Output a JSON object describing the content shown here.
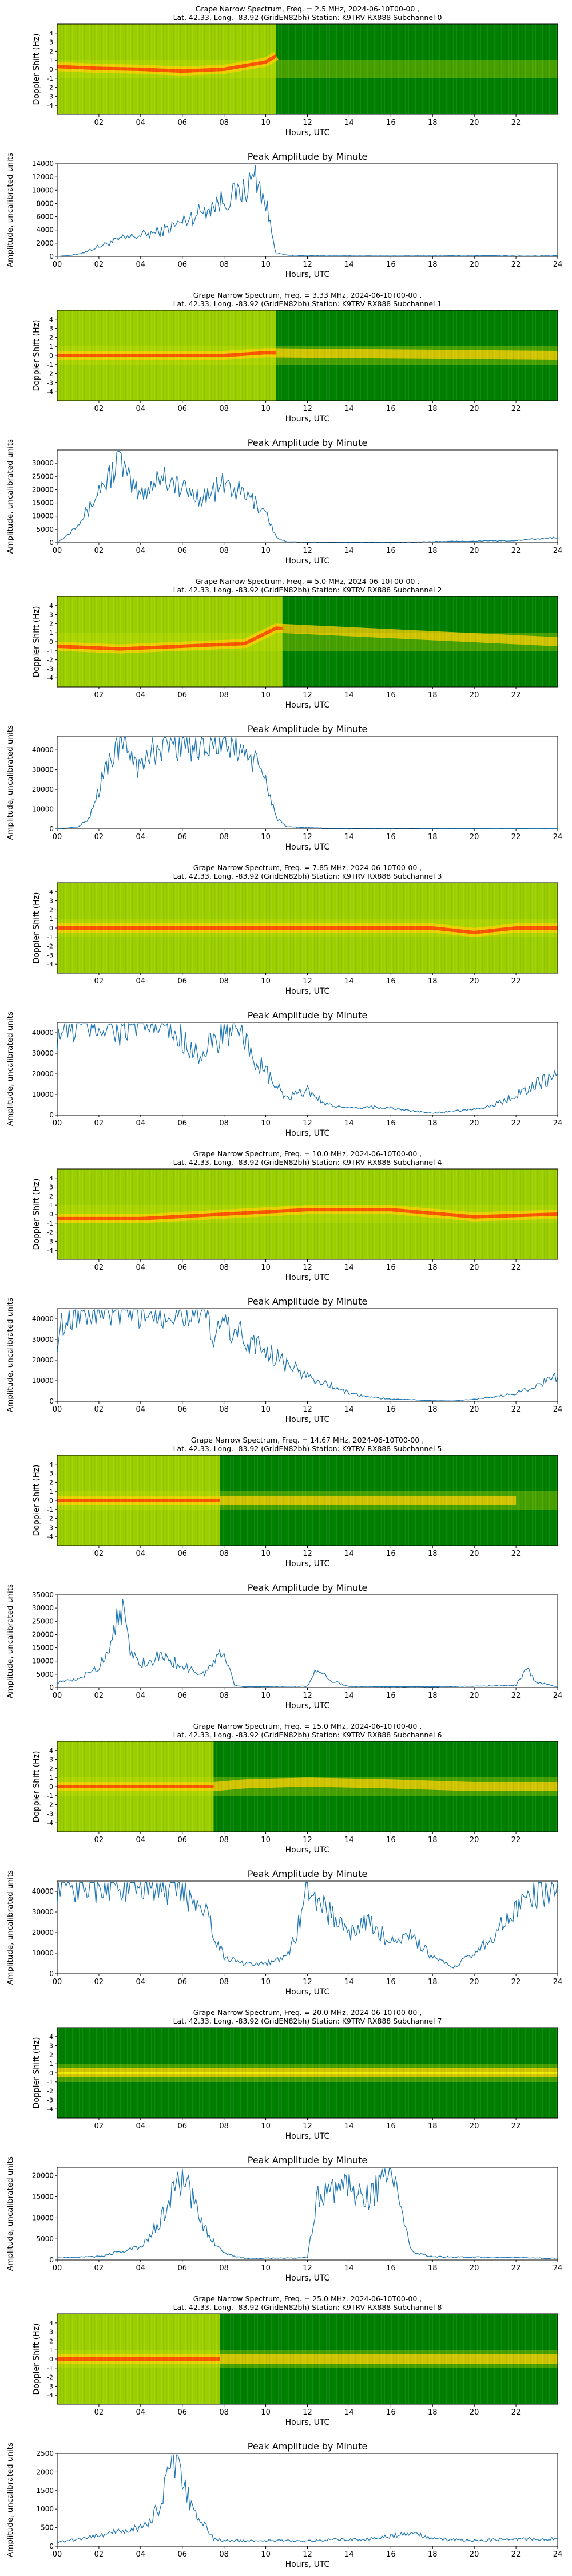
{
  "station": "Lat.  42.33, Long. -83.92 (GridEN82bh) Station: K9TRV RX888",
  "axes": {
    "x_label": "Hours, UTC",
    "spec_y_label": "Doppler Shift (Hz)",
    "amp_y_label": "Amplitude, uncalibrated units",
    "amp_title": "Peak Amplitude by Minute",
    "spec_x_ticks": [
      "02",
      "04",
      "06",
      "08",
      "10",
      "12",
      "14",
      "16",
      "18",
      "20",
      "22"
    ],
    "amp_x_ticks": [
      "00",
      "02",
      "04",
      "06",
      "08",
      "10",
      "12",
      "14",
      "16",
      "18",
      "20",
      "22",
      "24"
    ],
    "spec_y_ticks": [
      "4",
      "3",
      "2",
      "1",
      "0",
      "-1",
      "-2",
      "-3",
      "-4"
    ]
  },
  "colors": {
    "line": "#1f77b4",
    "spec_dark": "#008000",
    "spec_mid": "#b7dd00",
    "spec_hot": "#ff4000"
  },
  "chart_data": [
    {
      "type": "heatmap",
      "title": "Grape Narrow Spectrum, Freq. = 2.5 MHz, 2024-06-10T00-00 ,",
      "subtitle": "Lat.  42.33, Long. -83.92 (GridEN82bh) Station: K9TRV RX888 Subchannel 0",
      "x_range": [
        0,
        24
      ],
      "y_range": [
        -5,
        5
      ],
      "bright_until_hour": 10.5,
      "trace": [
        [
          0,
          0.3
        ],
        [
          2,
          0.1
        ],
        [
          4,
          0
        ],
        [
          6,
          -0.2
        ],
        [
          8,
          0
        ],
        [
          10,
          0.8
        ],
        [
          10.5,
          1.5
        ]
      ]
    },
    {
      "type": "line",
      "title": "Peak Amplitude by Minute",
      "ylim": [
        0,
        14000
      ],
      "yticks": [
        0,
        2000,
        4000,
        6000,
        8000,
        10000,
        12000,
        14000
      ],
      "points": [
        [
          0,
          0
        ],
        [
          1,
          300
        ],
        [
          2,
          1500
        ],
        [
          3,
          2600
        ],
        [
          4,
          3200
        ],
        [
          5,
          3800
        ],
        [
          6,
          5200
        ],
        [
          7,
          7000
        ],
        [
          8,
          8500
        ],
        [
          9,
          10000
        ],
        [
          9.5,
          12300
        ],
        [
          10,
          8000
        ],
        [
          10.5,
          500
        ],
        [
          11,
          200
        ],
        [
          12,
          100
        ],
        [
          16,
          80
        ],
        [
          20,
          100
        ],
        [
          22,
          200
        ],
        [
          24,
          150
        ]
      ]
    },
    {
      "type": "heatmap",
      "title": "Grape Narrow Spectrum, Freq. = 3.33 MHz, 2024-06-10T00-00 ,",
      "subtitle": "Lat.  42.33, Long. -83.92 (GridEN82bh) Station: K9TRV RX888 Subchannel 1",
      "x_range": [
        0,
        24
      ],
      "y_range": [
        -5,
        5
      ],
      "bright_until_hour": 10.5,
      "trace": [
        [
          0,
          0
        ],
        [
          4,
          0
        ],
        [
          8,
          0
        ],
        [
          10,
          0.3
        ],
        [
          24,
          0
        ]
      ]
    },
    {
      "type": "line",
      "title": "Peak Amplitude by Minute",
      "ylim": [
        0,
        35000
      ],
      "yticks": [
        0,
        5000,
        10000,
        15000,
        20000,
        25000,
        30000
      ],
      "points": [
        [
          0,
          0
        ],
        [
          0.5,
          3000
        ],
        [
          1,
          8000
        ],
        [
          1.5,
          12000
        ],
        [
          2,
          20000
        ],
        [
          2.5,
          25000
        ],
        [
          3,
          32000
        ],
        [
          3.5,
          22000
        ],
        [
          4,
          18000
        ],
        [
          5,
          26000
        ],
        [
          6,
          20000
        ],
        [
          7,
          17000
        ],
        [
          8,
          22000
        ],
        [
          9,
          18000
        ],
        [
          10,
          12000
        ],
        [
          10.5,
          2000
        ],
        [
          11,
          300
        ],
        [
          16,
          200
        ],
        [
          22,
          800
        ],
        [
          24,
          2000
        ]
      ]
    },
    {
      "type": "heatmap",
      "title": "Grape Narrow Spectrum, Freq. = 5.0 MHz, 2024-06-10T00-00 ,",
      "subtitle": "Lat.  42.33, Long. -83.92 (GridEN82bh) Station: K9TRV RX888 Subchannel 2",
      "x_range": [
        0,
        24
      ],
      "y_range": [
        -5,
        5
      ],
      "bright_until_hour": 10.8,
      "trace": [
        [
          0,
          -0.5
        ],
        [
          3,
          -0.8
        ],
        [
          6,
          -0.5
        ],
        [
          9,
          -0.2
        ],
        [
          10.5,
          1.5
        ],
        [
          24,
          0
        ]
      ]
    },
    {
      "type": "line",
      "title": "Peak Amplitude by Minute",
      "ylim": [
        0,
        47000
      ],
      "yticks": [
        0,
        10000,
        20000,
        30000,
        40000
      ],
      "points": [
        [
          0,
          0
        ],
        [
          1,
          1000
        ],
        [
          1.5,
          5000
        ],
        [
          2,
          20000
        ],
        [
          2.5,
          35000
        ],
        [
          3,
          44000
        ],
        [
          3.5,
          40000
        ],
        [
          4,
          30000
        ],
        [
          4.5,
          38000
        ],
        [
          5,
          44000
        ],
        [
          6,
          44000
        ],
        [
          7,
          44000
        ],
        [
          8,
          44000
        ],
        [
          9,
          40000
        ],
        [
          10,
          25000
        ],
        [
          10.5,
          6000
        ],
        [
          11,
          1000
        ],
        [
          13,
          300
        ],
        [
          24,
          200
        ]
      ]
    },
    {
      "type": "heatmap",
      "title": "Grape Narrow Spectrum, Freq. = 7.85 MHz, 2024-06-10T00-00 ,",
      "subtitle": "Lat.  42.33, Long. -83.92 (GridEN82bh) Station: K9TRV RX888 Subchannel 3",
      "x_range": [
        0,
        24
      ],
      "y_range": [
        -5,
        5
      ],
      "bright_until_hour": 24,
      "trace": [
        [
          0,
          0
        ],
        [
          6,
          0
        ],
        [
          10,
          0
        ],
        [
          14,
          0
        ],
        [
          18,
          0
        ],
        [
          20,
          -0.5
        ],
        [
          22,
          0
        ],
        [
          24,
          0
        ]
      ]
    },
    {
      "type": "line",
      "title": "Peak Amplitude by Minute",
      "ylim": [
        0,
        45000
      ],
      "yticks": [
        0,
        10000,
        20000,
        30000,
        40000
      ],
      "points": [
        [
          0,
          40000
        ],
        [
          1,
          44000
        ],
        [
          2,
          44000
        ],
        [
          3,
          42000
        ],
        [
          4,
          44000
        ],
        [
          5,
          43000
        ],
        [
          6,
          38000
        ],
        [
          7,
          28000
        ],
        [
          8,
          42000
        ],
        [
          9,
          35000
        ],
        [
          10,
          20000
        ],
        [
          11,
          8000
        ],
        [
          12,
          12000
        ],
        [
          13,
          5000
        ],
        [
          14,
          3000
        ],
        [
          15,
          4000
        ],
        [
          16,
          3500
        ],
        [
          17,
          2000
        ],
        [
          18,
          1000
        ],
        [
          19,
          2000
        ],
        [
          20,
          3000
        ],
        [
          21,
          5000
        ],
        [
          22,
          10000
        ],
        [
          23,
          15000
        ],
        [
          24,
          20000
        ]
      ]
    },
    {
      "type": "heatmap",
      "title": "Grape Narrow Spectrum, Freq. = 10.0 MHz, 2024-06-10T00-00 ,",
      "subtitle": "Lat.  42.33, Long. -83.92 (GridEN82bh) Station: K9TRV RX888 Subchannel 4",
      "x_range": [
        0,
        24
      ],
      "y_range": [
        -5,
        5
      ],
      "bright_until_hour": 24,
      "trace": [
        [
          0,
          -0.5
        ],
        [
          4,
          -0.5
        ],
        [
          8,
          0
        ],
        [
          12,
          0.5
        ],
        [
          16,
          0.5
        ],
        [
          20,
          -0.3
        ],
        [
          24,
          0
        ]
      ]
    },
    {
      "type": "line",
      "title": "Peak Amplitude by Minute",
      "ylim": [
        0,
        45000
      ],
      "yticks": [
        0,
        10000,
        20000,
        30000,
        40000
      ],
      "points": [
        [
          0,
          30000
        ],
        [
          0.5,
          44000
        ],
        [
          1,
          44000
        ],
        [
          2,
          44000
        ],
        [
          3,
          44000
        ],
        [
          4,
          44000
        ],
        [
          7,
          44000
        ],
        [
          7.5,
          30000
        ],
        [
          8,
          38000
        ],
        [
          9,
          30000
        ],
        [
          10,
          25000
        ],
        [
          11,
          18000
        ],
        [
          12,
          12000
        ],
        [
          13,
          8000
        ],
        [
          14,
          4000
        ],
        [
          15,
          2000
        ],
        [
          16,
          1000
        ],
        [
          17,
          800
        ],
        [
          18,
          300
        ],
        [
          19,
          200
        ],
        [
          20,
          1000
        ],
        [
          21,
          2000
        ],
        [
          22,
          4000
        ],
        [
          23,
          8000
        ],
        [
          24,
          12000
        ]
      ]
    },
    {
      "type": "heatmap",
      "title": "Grape Narrow Spectrum, Freq. = 14.67 MHz, 2024-06-10T00-00 ,",
      "subtitle": "Lat.  42.33, Long. -83.92 (GridEN82bh) Station: K9TRV RX888 Subchannel 5",
      "x_range": [
        0,
        24
      ],
      "y_range": [
        -5,
        5
      ],
      "bright_until_hour": 7.8,
      "trace": [
        [
          0,
          0
        ],
        [
          4,
          0
        ],
        [
          8,
          0
        ],
        [
          12,
          0
        ],
        [
          16,
          0
        ],
        [
          22,
          0
        ]
      ]
    },
    {
      "type": "line",
      "title": "Peak Amplitude by Minute",
      "ylim": [
        0,
        35000
      ],
      "yticks": [
        0,
        5000,
        10000,
        15000,
        20000,
        25000,
        30000,
        35000
      ],
      "points": [
        [
          0,
          2000
        ],
        [
          1,
          3000
        ],
        [
          2,
          8000
        ],
        [
          2.5,
          15000
        ],
        [
          3,
          33000
        ],
        [
          3.5,
          14000
        ],
        [
          4,
          9000
        ],
        [
          5,
          12000
        ],
        [
          6,
          8000
        ],
        [
          7,
          5000
        ],
        [
          8,
          14000
        ],
        [
          8.5,
          1000
        ],
        [
          9,
          300
        ],
        [
          12,
          500
        ],
        [
          12.5,
          8000
        ],
        [
          13,
          3000
        ],
        [
          14,
          400
        ],
        [
          18,
          300
        ],
        [
          22,
          800
        ],
        [
          22.5,
          7000
        ],
        [
          23,
          2000
        ],
        [
          24,
          300
        ]
      ]
    },
    {
      "type": "heatmap",
      "title": "Grape Narrow Spectrum, Freq. = 15.0 MHz, 2024-06-10T00-00 ,",
      "subtitle": "Lat.  42.33, Long. -83.92 (GridEN82bh) Station: K9TRV RX888 Subchannel 6",
      "x_range": [
        0,
        24
      ],
      "y_range": [
        -5,
        5
      ],
      "bright_until_hour": 7.5,
      "trace": [
        [
          0,
          0
        ],
        [
          4,
          0
        ],
        [
          7.5,
          0
        ],
        [
          9,
          0.3
        ],
        [
          12,
          0.5
        ],
        [
          16,
          0.3
        ],
        [
          20,
          0
        ],
        [
          24,
          0
        ]
      ]
    },
    {
      "type": "line",
      "title": "Peak Amplitude by Minute",
      "ylim": [
        0,
        45000
      ],
      "yticks": [
        0,
        10000,
        20000,
        30000,
        40000
      ],
      "points": [
        [
          0,
          44000
        ],
        [
          1,
          44000
        ],
        [
          3,
          44000
        ],
        [
          5,
          44000
        ],
        [
          6,
          40000
        ],
        [
          7,
          35000
        ],
        [
          7.5,
          20000
        ],
        [
          8,
          8000
        ],
        [
          9,
          5000
        ],
        [
          10,
          5000
        ],
        [
          11,
          8000
        ],
        [
          11.5,
          20000
        ],
        [
          12,
          44000
        ],
        [
          13,
          30000
        ],
        [
          14,
          20000
        ],
        [
          15,
          25000
        ],
        [
          16,
          15000
        ],
        [
          17,
          18000
        ],
        [
          18,
          8000
        ],
        [
          19,
          3000
        ],
        [
          20,
          10000
        ],
        [
          21,
          20000
        ],
        [
          22,
          30000
        ],
        [
          23,
          40000
        ],
        [
          24,
          44000
        ]
      ]
    },
    {
      "type": "heatmap",
      "title": "Grape Narrow Spectrum, Freq. = 20.0 MHz, 2024-06-10T00-00 ,",
      "subtitle": "Lat.  42.33, Long. -83.92 (GridEN82bh) Station: K9TRV RX888 Subchannel 7",
      "x_range": [
        0,
        24
      ],
      "y_range": [
        -5,
        5
      ],
      "bright_until_hour": 0,
      "trace": [
        [
          0,
          0
        ],
        [
          6,
          0
        ],
        [
          12,
          0
        ],
        [
          18,
          0
        ],
        [
          24,
          0
        ]
      ]
    },
    {
      "type": "line",
      "title": "Peak Amplitude by Minute",
      "ylim": [
        0,
        22000
      ],
      "yticks": [
        0,
        5000,
        10000,
        15000,
        20000
      ],
      "points": [
        [
          0,
          500
        ],
        [
          2,
          800
        ],
        [
          3,
          2000
        ],
        [
          4,
          3000
        ],
        [
          4.5,
          6000
        ],
        [
          5,
          10000
        ],
        [
          5.5,
          16000
        ],
        [
          6,
          20000
        ],
        [
          6.5,
          14000
        ],
        [
          7,
          8000
        ],
        [
          8,
          1500
        ],
        [
          9,
          400
        ],
        [
          12,
          500
        ],
        [
          12.5,
          15000
        ],
        [
          13,
          18000
        ],
        [
          13.5,
          16000
        ],
        [
          14,
          17000
        ],
        [
          15,
          15000
        ],
        [
          16,
          22000
        ],
        [
          17,
          2000
        ],
        [
          18,
          800
        ],
        [
          24,
          400
        ]
      ]
    },
    {
      "type": "heatmap",
      "title": "Grape Narrow Spectrum, Freq. = 25.0 MHz, 2024-06-10T00-00 ,",
      "subtitle": "Lat.  42.33, Long. -83.92 (GridEN82bh) Station: K9TRV RX888 Subchannel 8",
      "x_range": [
        0,
        24
      ],
      "y_range": [
        -5,
        5
      ],
      "bright_until_hour": 7.8,
      "trace": [
        [
          0,
          0
        ],
        [
          6,
          0
        ],
        [
          12,
          0
        ],
        [
          18,
          0
        ],
        [
          24,
          0
        ]
      ]
    },
    {
      "type": "line",
      "title": "Peak Amplitude by Minute",
      "ylim": [
        0,
        2500
      ],
      "yticks": [
        0,
        500,
        1000,
        1500,
        2000,
        2500
      ],
      "points": [
        [
          0,
          100
        ],
        [
          1,
          200
        ],
        [
          2,
          300
        ],
        [
          3,
          400
        ],
        [
          4,
          500
        ],
        [
          4.5,
          700
        ],
        [
          5,
          1200
        ],
        [
          5.5,
          2400
        ],
        [
          6,
          1800
        ],
        [
          6.5,
          1000
        ],
        [
          7,
          600
        ],
        [
          7.5,
          200
        ],
        [
          8,
          150
        ],
        [
          12,
          150
        ],
        [
          15,
          200
        ],
        [
          17,
          350
        ],
        [
          18,
          200
        ],
        [
          20,
          150
        ],
        [
          22,
          200
        ],
        [
          24,
          200
        ]
      ]
    }
  ]
}
